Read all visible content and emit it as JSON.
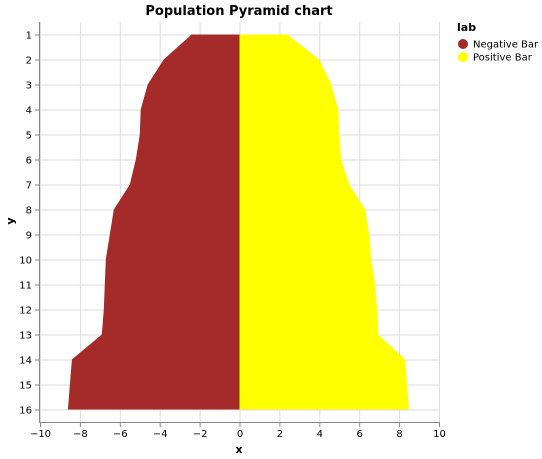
{
  "chart_data": {
    "type": "area",
    "title": "Population Pyramid chart",
    "xlabel": "x",
    "ylabel": "y",
    "xlim": [
      -10,
      10
    ],
    "x_ticks": [
      "−10",
      "−8",
      "−6",
      "−4",
      "−2",
      "0",
      "2",
      "4",
      "6",
      "8",
      "10"
    ],
    "y_categories": [
      "1",
      "2",
      "3",
      "4",
      "5",
      "6",
      "7",
      "8",
      "9",
      "10",
      "11",
      "12",
      "13",
      "14",
      "15",
      "16"
    ],
    "grid": true,
    "legend": {
      "title": "lab",
      "position": "top-right",
      "entries": [
        "Negative Bar",
        "Positive Bar"
      ]
    },
    "series": [
      {
        "name": "Negative Bar",
        "color": "#a52a2a",
        "values": [
          -2.4,
          -3.8,
          -4.6,
          -4.95,
          -5.0,
          -5.2,
          -5.5,
          -6.3,
          -6.5,
          -6.7,
          -6.75,
          -6.8,
          -6.9,
          -8.4,
          -8.5,
          -8.6
        ]
      },
      {
        "name": "Positive Bar",
        "color": "#ffff00",
        "values": [
          2.4,
          4.0,
          4.6,
          4.95,
          5.0,
          5.1,
          5.5,
          6.3,
          6.5,
          6.6,
          6.8,
          6.9,
          6.95,
          8.3,
          8.4,
          8.5
        ]
      }
    ]
  }
}
